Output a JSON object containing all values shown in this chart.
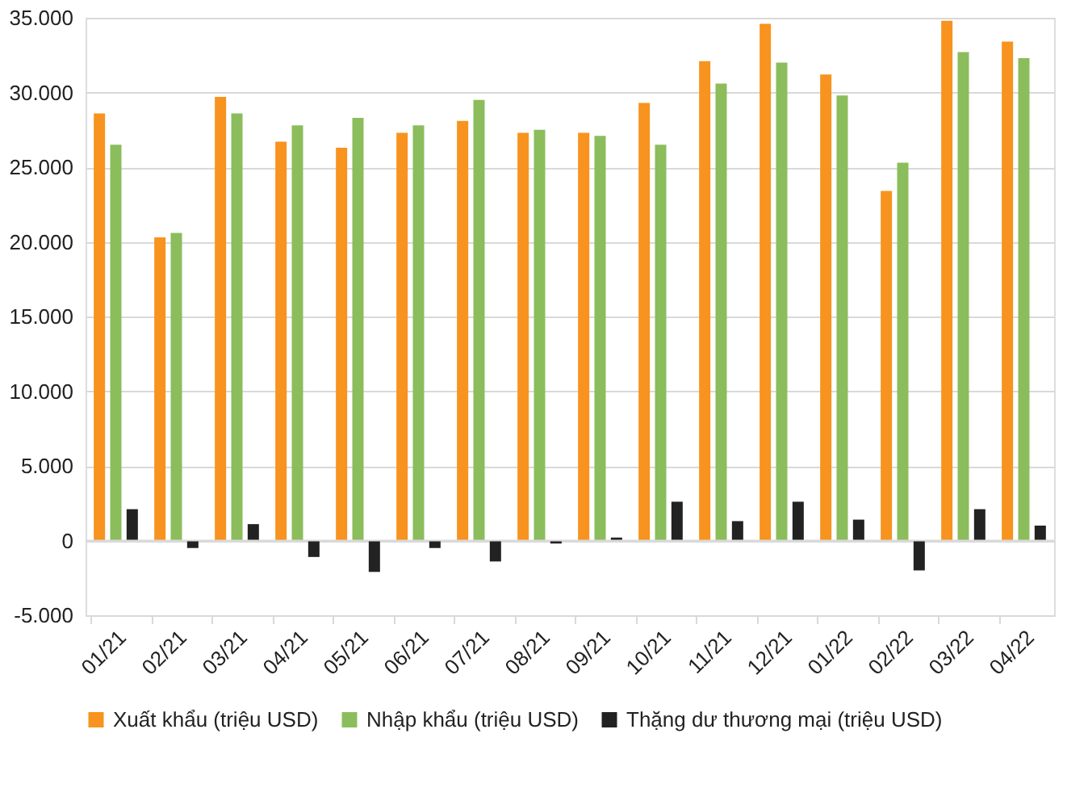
{
  "chart_data": {
    "type": "bar",
    "categories": [
      "01/21",
      "02/21",
      "03/21",
      "04/21",
      "05/21",
      "06/21",
      "07/21",
      "08/21",
      "09/21",
      "10/21",
      "11/21",
      "12/21",
      "01/22",
      "02/22",
      "03/22",
      "04/22"
    ],
    "series": [
      {
        "name": "Xuất khẩu (triệu USD)",
        "color": "#f7931e",
        "values": [
          28600,
          20300,
          29700,
          26700,
          26300,
          27300,
          28100,
          27300,
          27300,
          29300,
          32100,
          34600,
          31200,
          23400,
          34800,
          33400
        ]
      },
      {
        "name": "Nhập khẩu (triệu USD)",
        "color": "#8bbd5c",
        "values": [
          26500,
          20600,
          28600,
          27800,
          28300,
          27800,
          29500,
          27500,
          27100,
          26500,
          30600,
          32000,
          29800,
          25300,
          32700,
          32300
        ]
      },
      {
        "name": "Thặng dư thương mại (triệu USD)",
        "color": "#222222",
        "values": [
          2100,
          -500,
          1100,
          -1100,
          -2100,
          -500,
          -1400,
          -200,
          200,
          2600,
          1300,
          2600,
          1400,
          -2000,
          2100,
          1000
        ]
      }
    ],
    "ylim": [
      -5000,
      35000
    ],
    "yticks": [
      {
        "value": -5000,
        "label": "-5.000"
      },
      {
        "value": 0,
        "label": "0"
      },
      {
        "value": 5000,
        "label": "5.000"
      },
      {
        "value": 10000,
        "label": "10.000"
      },
      {
        "value": 15000,
        "label": "15.000"
      },
      {
        "value": 20000,
        "label": "20.000"
      },
      {
        "value": 25000,
        "label": "25.000"
      },
      {
        "value": 30000,
        "label": "30.000"
      },
      {
        "value": 35000,
        "label": "35.000"
      }
    ],
    "grid": "y",
    "legend": "bottom"
  }
}
